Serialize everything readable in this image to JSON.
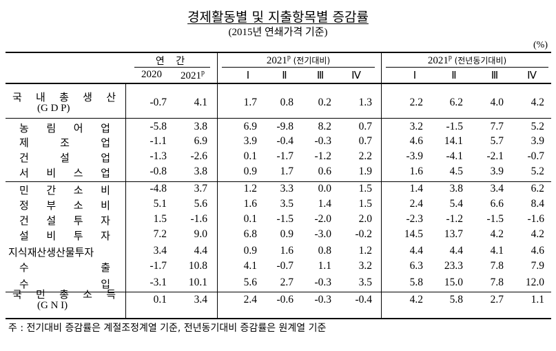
{
  "title": "경제활동별 및 지출항목별 증감률",
  "subtitle": "(2015년 연쇄가격 기준)",
  "unit": "(%)",
  "header": {
    "annual": "연 간",
    "y2020": "2020",
    "y2021": "2021",
    "p": "p",
    "qoq_year": "2021",
    "qoq_label": "(전기대비)",
    "yoy_year": "2021",
    "yoy_label": "(전년동기대비)",
    "quarters": [
      "Ⅰ",
      "Ⅱ",
      "Ⅲ",
      "Ⅳ"
    ]
  },
  "rows": [
    {
      "label": "국 내 총 생 산",
      "label2": "(G D P)",
      "values": [
        "-0.7",
        "4.1",
        "1.7",
        "0.8",
        "0.2",
        "1.3",
        "2.2",
        "6.2",
        "4.0",
        "4.2"
      ]
    },
    {
      "label": "농 림 어 업",
      "values": [
        "-5.8",
        "3.8",
        "6.9",
        "-9.8",
        "8.2",
        "0.7",
        "3.2",
        "-1.5",
        "7.7",
        "5.2"
      ]
    },
    {
      "label": "제 조 업",
      "values": [
        "-1.1",
        "6.9",
        "3.9",
        "-0.4",
        "-0.3",
        "0.7",
        "4.6",
        "14.1",
        "5.7",
        "3.9"
      ]
    },
    {
      "label": "건 설 업",
      "values": [
        "-1.3",
        "-2.6",
        "0.1",
        "-1.7",
        "-1.2",
        "2.2",
        "-3.9",
        "-4.1",
        "-2.1",
        "-0.7"
      ]
    },
    {
      "label": "서 비 스 업",
      "values": [
        "-0.8",
        "3.8",
        "0.9",
        "1.7",
        "0.6",
        "1.9",
        "1.6",
        "4.5",
        "3.9",
        "5.2"
      ]
    },
    {
      "label": "민 간 소 비",
      "values": [
        "-4.8",
        "3.7",
        "1.2",
        "3.3",
        "0.0",
        "1.5",
        "1.4",
        "3.8",
        "3.4",
        "6.2"
      ]
    },
    {
      "label": "정 부 소 비",
      "values": [
        "5.1",
        "5.6",
        "1.6",
        "3.5",
        "1.4",
        "1.5",
        "2.4",
        "5.4",
        "6.6",
        "8.4"
      ]
    },
    {
      "label": "건 설 투 자",
      "values": [
        "1.5",
        "-1.6",
        "0.1",
        "-1.5",
        "-2.0",
        "2.0",
        "-2.3",
        "-1.2",
        "-1.5",
        "-1.6"
      ]
    },
    {
      "label": "설 비 투 자",
      "values": [
        "7.2",
        "9.0",
        "6.8",
        "0.9",
        "-3.0",
        "-0.2",
        "14.5",
        "13.7",
        "4.2",
        "4.2"
      ]
    },
    {
      "label": "지식재산생산물투자",
      "values": [
        "3.4",
        "4.4",
        "0.9",
        "1.6",
        "0.8",
        "1.2",
        "4.4",
        "4.4",
        "4.1",
        "4.6"
      ]
    },
    {
      "label": "수 출",
      "values": [
        "-1.7",
        "10.8",
        "4.1",
        "-0.7",
        "1.1",
        "3.2",
        "6.3",
        "23.3",
        "7.8",
        "7.9"
      ]
    },
    {
      "label": "수 입",
      "values": [
        "-3.1",
        "10.1",
        "5.6",
        "2.7",
        "-0.3",
        "3.5",
        "5.8",
        "15.0",
        "7.8",
        "12.0"
      ]
    },
    {
      "label": "국 민 총 소 득",
      "label2": "(G N I)",
      "values": [
        "0.1",
        "3.4",
        "2.4",
        "-0.6",
        "-0.3",
        "-0.4",
        "4.2",
        "5.8",
        "2.7",
        "1.1"
      ]
    }
  ],
  "note": "주 : 전기대비 증감률은 계절조정계열 기준, 전년동기대비 증감률은 원계열 기준"
}
